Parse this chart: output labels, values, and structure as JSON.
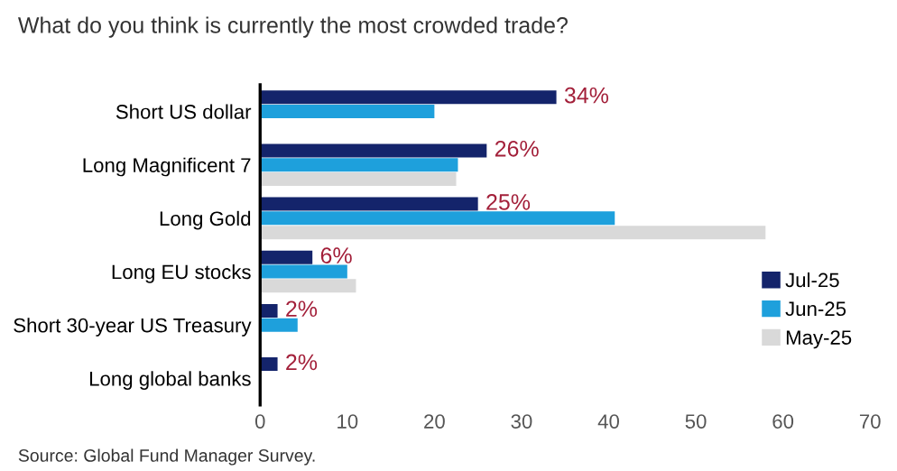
{
  "chart_data": {
    "type": "bar",
    "orientation": "horizontal",
    "title": "What do you think is currently the most crowded trade?",
    "categories": [
      "Short US dollar",
      "Long Magnificent 7",
      "Long Gold",
      "Long EU stocks",
      "Short 30-year US Treasury",
      "Long global banks"
    ],
    "series": [
      {
        "name": "Jul-25",
        "color": "#14246b",
        "values": [
          34,
          26,
          25,
          6,
          2,
          2
        ],
        "value_labels": [
          "34%",
          "26%",
          "25%",
          "6%",
          "2%",
          "2%"
        ]
      },
      {
        "name": "Jun-25",
        "color": "#1ea0dc",
        "values": [
          20,
          22.7,
          40.7,
          10,
          4.3,
          null
        ]
      },
      {
        "name": "May-25",
        "color": "#d9d9d9",
        "values": [
          null,
          22.5,
          58,
          11,
          null,
          null
        ]
      }
    ],
    "xlim": [
      0,
      70
    ],
    "xticks": [
      0,
      10,
      20,
      30,
      40,
      50,
      60,
      70
    ],
    "grid": false,
    "legend": "bottom right",
    "annotations": [
      "Source: Global Fund Manager Survey."
    ]
  }
}
